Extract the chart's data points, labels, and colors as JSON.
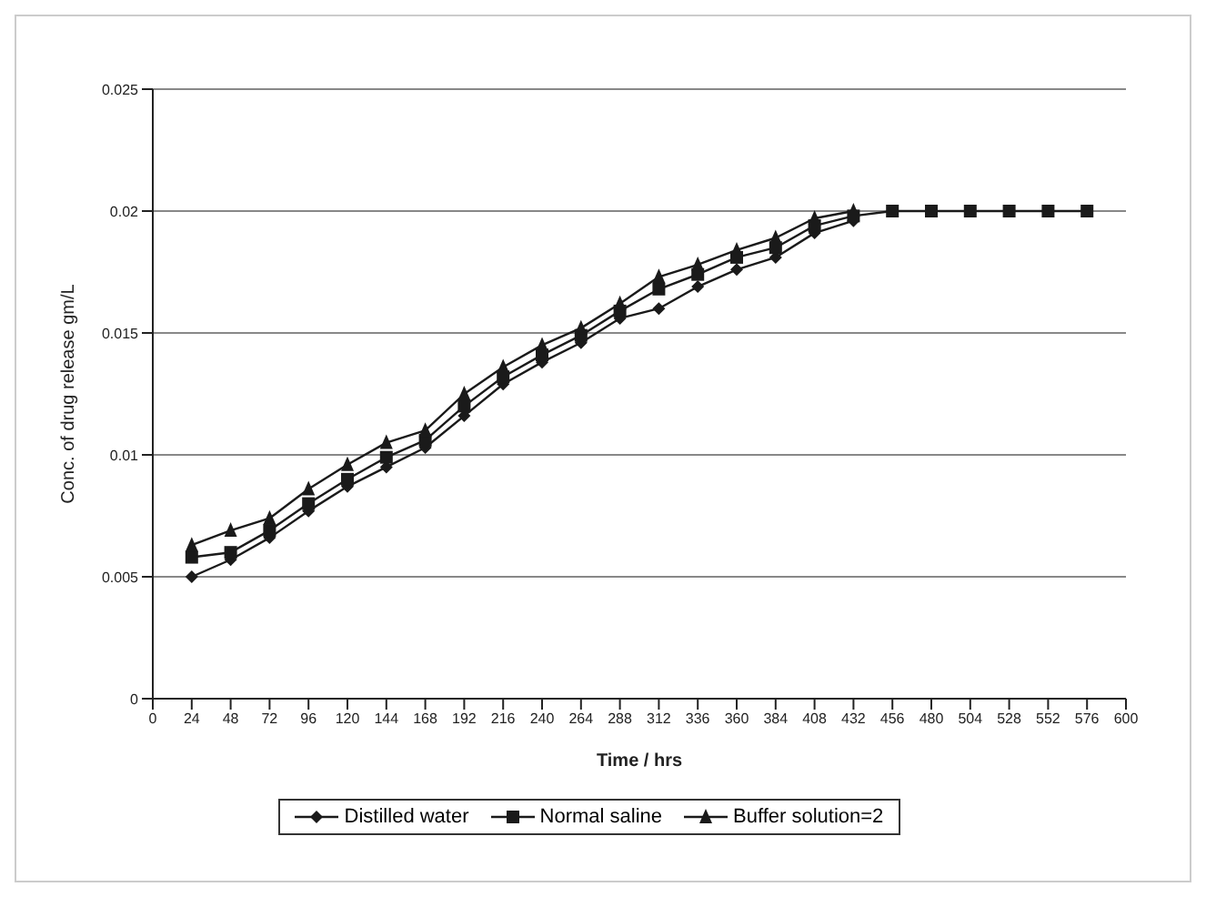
{
  "chart_data": {
    "type": "line",
    "xlabel": "Time / hrs",
    "ylabel": "Conc. of drug release gm/L",
    "x": [
      24,
      48,
      72,
      96,
      120,
      144,
      168,
      192,
      216,
      240,
      264,
      288,
      312,
      336,
      360,
      384,
      408,
      432,
      456,
      480,
      504,
      528,
      552,
      576
    ],
    "series": [
      {
        "name": "Distilled water",
        "color": "#1a1a1a",
        "marker": "diamond",
        "values": [
          0.005,
          0.0057,
          0.0066,
          0.0077,
          0.0087,
          0.0095,
          0.0103,
          0.0116,
          0.0129,
          0.0138,
          0.0146,
          0.0156,
          0.016,
          0.0169,
          0.0176,
          0.0181,
          0.0191,
          0.0196,
          null,
          null,
          null,
          null,
          null,
          null
        ]
      },
      {
        "name": "Normal saline",
        "color": "#1a1a1a",
        "marker": "square",
        "values": [
          0.0058,
          0.006,
          0.0069,
          0.008,
          0.009,
          0.0099,
          0.0106,
          0.012,
          0.0132,
          0.0141,
          0.0149,
          0.0159,
          0.0168,
          0.0174,
          0.0181,
          0.0185,
          0.0194,
          0.0198,
          0.02,
          0.02,
          0.02,
          0.02,
          0.02,
          0.02
        ]
      },
      {
        "name": "Buffer solution=2",
        "color": "#1a1a1a",
        "marker": "triangle",
        "values": [
          0.0063,
          0.0069,
          0.0074,
          0.0086,
          0.0096,
          0.0105,
          0.011,
          0.0125,
          0.0136,
          0.0145,
          0.0152,
          0.0162,
          0.0173,
          0.0178,
          0.0184,
          0.0189,
          0.0197,
          0.02,
          null,
          null,
          null,
          null,
          null,
          null
        ]
      }
    ],
    "xlim": [
      0,
      600
    ],
    "xticks": [
      0,
      24,
      48,
      72,
      96,
      120,
      144,
      168,
      192,
      216,
      240,
      264,
      288,
      312,
      336,
      360,
      384,
      408,
      432,
      456,
      480,
      504,
      528,
      552,
      576,
      600
    ],
    "ylim": [
      0,
      0.025
    ],
    "yticks": [
      0,
      0.005,
      0.01,
      0.015,
      0.02,
      0.025
    ],
    "grid": "y",
    "legend": "bottom",
    "line_style": "solid"
  }
}
